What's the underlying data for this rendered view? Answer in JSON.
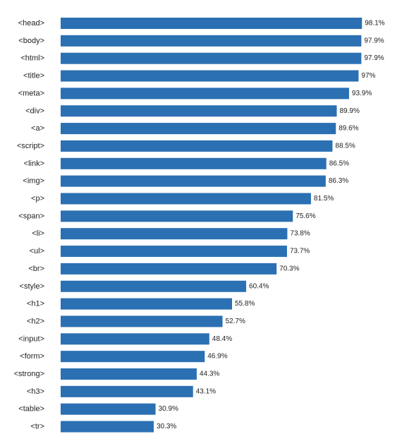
{
  "chart_data": {
    "type": "bar",
    "orientation": "horizontal",
    "categories": [
      "<head>",
      "<body>",
      "<html>",
      "<title>",
      "<meta>",
      "<div>",
      "<a>",
      "<script>",
      "<link>",
      "<img>",
      "<p>",
      "<span>",
      "<li>",
      "<ul>",
      "<br>",
      "<style>",
      "<h1>",
      "<h2>",
      "<input>",
      "<form>",
      "<strong>",
      "<h3>",
      "<table>",
      "<tr>"
    ],
    "values": [
      98.1,
      97.9,
      97.9,
      97,
      93.9,
      89.9,
      89.6,
      88.5,
      86.5,
      86.3,
      81.5,
      75.6,
      73.8,
      73.7,
      70.3,
      60.4,
      55.8,
      52.7,
      48.4,
      46.9,
      44.3,
      43.1,
      30.9,
      30.3
    ],
    "value_labels": [
      "98.1%",
      "97.9%",
      "97.9%",
      "97%",
      "93.9%",
      "89.9%",
      "89.6%",
      "88.5%",
      "86.5%",
      "86.3%",
      "81.5%",
      "75.6%",
      "73.8%",
      "73.7%",
      "70.3%",
      "60.4%",
      "55.8%",
      "52.7%",
      "48.4%",
      "46.9%",
      "44.3%",
      "43.1%",
      "30.9%",
      "30.3%"
    ],
    "unit": "%",
    "xlim": [
      0,
      100
    ],
    "grid": false,
    "legend": "none",
    "bar_color": "#2b70b2"
  }
}
